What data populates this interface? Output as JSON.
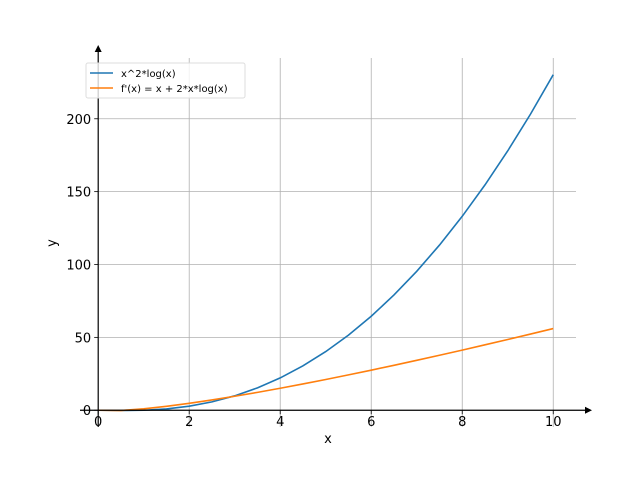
{
  "chart_data": {
    "type": "line",
    "title": "",
    "xlabel": "x",
    "ylabel": "y",
    "xlim": [
      -0.4,
      10.5
    ],
    "ylim": [
      -11.5,
      241.7
    ],
    "xticks": [
      0,
      2,
      4,
      6,
      8,
      10
    ],
    "yticks": [
      0,
      50,
      100,
      150,
      200
    ],
    "grid": true,
    "legend": "top-left",
    "x": [
      0,
      0.5,
      1,
      1.5,
      2,
      2.5,
      3,
      3.5,
      4,
      4.5,
      5,
      5.5,
      6,
      6.5,
      7,
      7.5,
      8,
      8.5,
      9,
      9.5,
      10
    ],
    "series": [
      {
        "name": "x^2*log(x)",
        "color": "#1f77b4",
        "values": [
          0,
          -0.173,
          0,
          0.912,
          2.773,
          5.727,
          9.888,
          15.347,
          22.181,
          30.458,
          40.236,
          51.568,
          64.503,
          79.083,
          95.349,
          113.34,
          133.08,
          154.62,
          177.98,
          203.18,
          230.26
        ]
      },
      {
        "name": "f'(x) = x + 2*x*log(x)",
        "color": "#ff7f0e",
        "values": [
          0,
          -0.193,
          1,
          2.716,
          4.773,
          7.081,
          9.592,
          12.27,
          15.09,
          18.04,
          21.09,
          24.25,
          27.5,
          30.83,
          34.24,
          37.72,
          41.27,
          44.88,
          48.55,
          52.27,
          56.05
        ]
      }
    ]
  }
}
